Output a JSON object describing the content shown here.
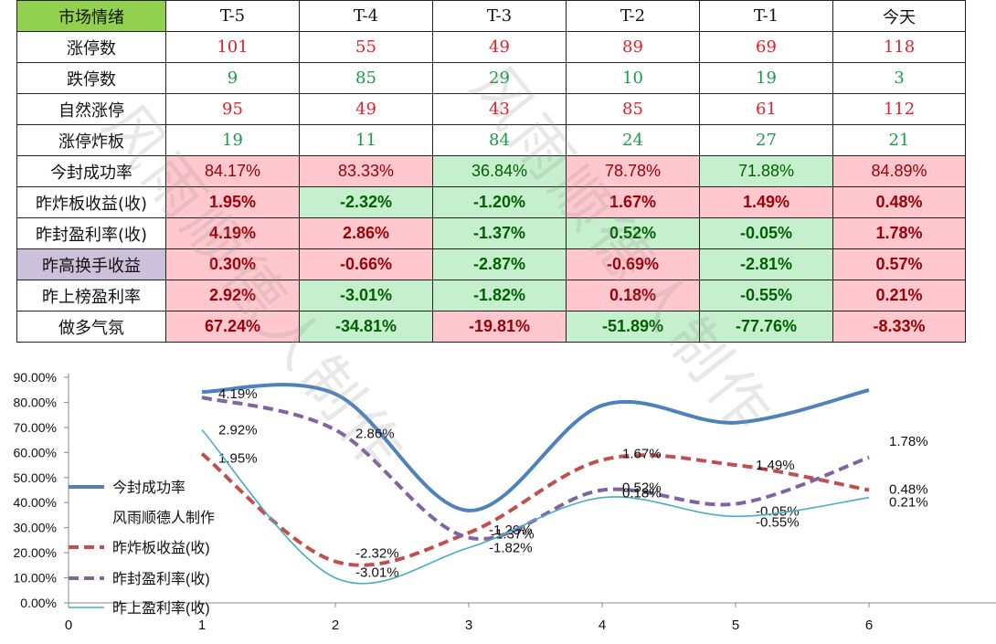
{
  "table": {
    "header": [
      "市场情绪",
      "T-5",
      "T-4",
      "T-3",
      "T-2",
      "T-1",
      "今天"
    ],
    "count_rows": [
      {
        "label": "涨停数",
        "color": "red",
        "values": [
          "101",
          "55",
          "49",
          "89",
          "69",
          "118"
        ]
      },
      {
        "label": "跌停数",
        "color": "green",
        "values": [
          "9",
          "85",
          "29",
          "10",
          "19",
          "3"
        ]
      },
      {
        "label": "自然涨停",
        "color": "red",
        "values": [
          "95",
          "49",
          "43",
          "85",
          "61",
          "112"
        ]
      },
      {
        "label": "涨停炸板",
        "color": "green",
        "values": [
          "19",
          "11",
          "84",
          "24",
          "27",
          "21"
        ]
      }
    ],
    "pct_rows": [
      {
        "label": "今封成功率",
        "bold": false,
        "values": [
          "84.17%",
          "83.33%",
          "36.84%",
          "78.78%",
          "71.88%",
          "84.89%"
        ],
        "tones": [
          "red",
          "red",
          "green",
          "red",
          "green",
          "red"
        ]
      },
      {
        "label": "昨炸板收益(收)",
        "bold": true,
        "values": [
          "1.95%",
          "-2.32%",
          "-1.20%",
          "1.67%",
          "1.49%",
          "0.48%"
        ],
        "tones": [
          "red",
          "green",
          "green",
          "red",
          "red",
          "red"
        ]
      },
      {
        "label": "昨封盈利率(收)",
        "bold": true,
        "values": [
          "4.19%",
          "2.86%",
          "-1.37%",
          "0.52%",
          "-0.05%",
          "1.78%"
        ],
        "tones": [
          "red",
          "red",
          "green",
          "green",
          "green",
          "red"
        ]
      },
      {
        "label": "昨高换手收益",
        "bold": true,
        "label_bg": "purple",
        "values": [
          "0.30%",
          "-0.66%",
          "-2.87%",
          "-0.69%",
          "-2.81%",
          "0.57%"
        ],
        "tones": [
          "red",
          "red",
          "green",
          "red",
          "green",
          "red"
        ]
      },
      {
        "label": "昨上榜盈利率",
        "bold": true,
        "values": [
          "2.92%",
          "-3.01%",
          "-1.82%",
          "0.18%",
          "-0.55%",
          "0.21%"
        ],
        "tones": [
          "red",
          "green",
          "green",
          "red",
          "green",
          "red"
        ]
      },
      {
        "label": "做多气氛",
        "bold": true,
        "values": [
          "67.24%",
          "-34.81%",
          "-19.81%",
          "-51.89%",
          "-77.76%",
          "-8.33%"
        ],
        "tones": [
          "red",
          "green",
          "red",
          "green",
          "green",
          "red"
        ]
      }
    ],
    "colors": {
      "header_label_bg": "#92d050",
      "purple_label_bg": "#ccc0da",
      "pink": "#ffc7ce",
      "light_green": "#c6efce",
      "dark_red_text": "#9c0006",
      "dark_green_text": "#006100",
      "red_text": "#e0202a",
      "green_text": "#1a9a4a"
    }
  },
  "watermark": [
    "风雨顺德人制作",
    "风雨顺德人制作"
  ],
  "chart_data": {
    "type": "line",
    "xlim": [
      0,
      7
    ],
    "x_ticks": [
      "0",
      "1",
      "2",
      "3",
      "4",
      "5",
      "6"
    ],
    "ylim": [
      0,
      90
    ],
    "y_ticks": [
      "0.00%",
      "10.00%",
      "20.00%",
      "30.00%",
      "40.00%",
      "50.00%",
      "60.00%",
      "70.00%",
      "80.00%",
      "90.00%"
    ],
    "grid": false,
    "legend_position": "left",
    "legend_note": "风雨顺德人制作",
    "series": [
      {
        "name": "今封成功率",
        "color": "#4f81bd",
        "dash": "solid",
        "width": 4,
        "x": [
          1,
          2,
          3,
          4,
          5,
          6
        ],
        "y": [
          84.17,
          83.33,
          36.84,
          78.78,
          71.88,
          84.89
        ],
        "labels": []
      },
      {
        "name": "昨炸板收益(收)",
        "color": "#c0504d",
        "dash": "dashed",
        "width": 4,
        "x": [
          1,
          2,
          3,
          4,
          5,
          6
        ],
        "y": [
          59.5,
          16.5,
          28,
          57,
          55,
          45
        ],
        "labels": [
          "1.95%",
          "-2.32%",
          "-1.20%",
          "1.67%",
          "1.49%",
          "0.48%"
        ]
      },
      {
        "name": "昨封盈利率(收)",
        "color": "#8064a2",
        "dash": "dashed",
        "width": 4,
        "x": [
          1,
          2,
          3,
          4,
          5,
          6
        ],
        "y": [
          82,
          69,
          26,
          45,
          39.5,
          58
        ],
        "labels": [
          "4.19%",
          "2.86%",
          "-1.37%",
          "0.52%",
          "-0.05%",
          "1.78%"
        ]
      },
      {
        "name": "昨上盈利率(收)",
        "color": "#4bacc6",
        "dash": "solid",
        "width": 1.6,
        "x": [
          1,
          2,
          3,
          4,
          5,
          6
        ],
        "y": [
          69,
          10,
          22,
          42,
          34.5,
          42
        ],
        "labels": [
          "2.92%",
          "-3.01%",
          "-1.82%",
          "0.18%",
          "-0.55%",
          "0.21%"
        ]
      }
    ]
  }
}
